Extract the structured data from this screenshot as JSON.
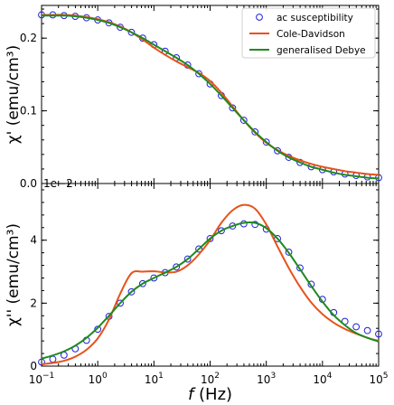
{
  "chart_data": [
    {
      "type": "line",
      "ylabel": "χ' (emu/cm³)",
      "xscale": "log",
      "xlim_log10": [
        -1,
        5
      ],
      "ylim": [
        0.0,
        0.245
      ],
      "yticks": [
        0.0,
        0.1,
        0.2
      ],
      "ytick_labels": [
        "0.0",
        "0.1",
        "0.2"
      ],
      "legend": {
        "placement": "top-right",
        "entries": [
          {
            "label": "ac susceptibility",
            "marker": "open-circle",
            "color": "#1f1fdc"
          },
          {
            "label": "Cole-Davidson",
            "marker": "line",
            "color": "#e8521a"
          },
          {
            "label": "generalised Debye",
            "marker": "line",
            "color": "#1f8a1f"
          }
        ]
      },
      "x_log10": [
        -1.0,
        -0.8,
        -0.6,
        -0.4,
        -0.2,
        0.0,
        0.2,
        0.4,
        0.6,
        0.8,
        1.0,
        1.2,
        1.4,
        1.6,
        1.8,
        2.0,
        2.2,
        2.4,
        2.6,
        2.8,
        3.0,
        3.2,
        3.4,
        3.6,
        3.8,
        4.0,
        4.2,
        4.4,
        4.6,
        4.8,
        5.0
      ],
      "series": [
        {
          "name": "ac susceptibility",
          "style": "markers",
          "color": "#1f1fdc",
          "values": [
            0.232,
            0.232,
            0.231,
            0.23,
            0.228,
            0.225,
            0.221,
            0.215,
            0.208,
            0.2,
            0.191,
            0.182,
            0.173,
            0.163,
            0.151,
            0.137,
            0.121,
            0.104,
            0.087,
            0.071,
            0.057,
            0.045,
            0.036,
            0.029,
            0.023,
            0.019,
            0.016,
            0.013,
            0.011,
            0.009,
            0.008
          ]
        },
        {
          "name": "Cole-Davidson",
          "style": "line",
          "color": "#e8521a",
          "values": [
            0.232,
            0.232,
            0.232,
            0.231,
            0.229,
            0.226,
            0.222,
            0.216,
            0.208,
            0.198,
            0.187,
            0.177,
            0.168,
            0.16,
            0.152,
            0.141,
            0.125,
            0.106,
            0.087,
            0.07,
            0.056,
            0.046,
            0.038,
            0.032,
            0.027,
            0.023,
            0.02,
            0.017,
            0.015,
            0.013,
            0.012
          ]
        },
        {
          "name": "generalised Debye",
          "style": "line",
          "color": "#1f8a1f",
          "values": [
            0.231,
            0.231,
            0.231,
            0.23,
            0.228,
            0.225,
            0.221,
            0.215,
            0.208,
            0.2,
            0.191,
            0.182,
            0.173,
            0.163,
            0.151,
            0.137,
            0.121,
            0.104,
            0.087,
            0.071,
            0.057,
            0.045,
            0.036,
            0.029,
            0.023,
            0.019,
            0.015,
            0.012,
            0.01,
            0.008,
            0.007
          ]
        }
      ]
    },
    {
      "type": "line",
      "ylabel": "χ'' (emu/cm³)",
      "xlabel": "f (Hz)",
      "xlabel_italic_part": "f",
      "xlabel_rest": " (Hz)",
      "xscale": "log",
      "xlim_log10": [
        -1,
        5
      ],
      "xticks_log10": [
        -1,
        0,
        1,
        2,
        3,
        4,
        5
      ],
      "xtick_exponents": [
        "−1",
        "0",
        "1",
        "2",
        "3",
        "4",
        "5"
      ],
      "xtick_base": "10",
      "ylim": [
        0.0,
        5.8
      ],
      "yticks": [
        0,
        2,
        4
      ],
      "ytick_labels": [
        "0",
        "2",
        "4"
      ],
      "offset_text": "1e−2",
      "x_log10": [
        -1.0,
        -0.8,
        -0.6,
        -0.4,
        -0.2,
        0.0,
        0.2,
        0.4,
        0.6,
        0.8,
        1.0,
        1.2,
        1.4,
        1.6,
        1.8,
        2.0,
        2.2,
        2.4,
        2.6,
        2.8,
        3.0,
        3.2,
        3.4,
        3.6,
        3.8,
        4.0,
        4.2,
        4.4,
        4.6,
        4.8,
        5.0
      ],
      "series": [
        {
          "name": "ac susceptibility",
          "style": "markers",
          "color": "#1f1fdc",
          "values": [
            0.13,
            0.22,
            0.35,
            0.55,
            0.82,
            1.17,
            1.58,
            2.0,
            2.36,
            2.62,
            2.8,
            2.97,
            3.15,
            3.4,
            3.72,
            4.05,
            4.3,
            4.45,
            4.52,
            4.5,
            4.35,
            4.05,
            3.62,
            3.12,
            2.6,
            2.12,
            1.7,
            1.42,
            1.25,
            1.13,
            1.02
          ]
        },
        {
          "name": "Cole-Davidson",
          "style": "line",
          "color": "#e8521a",
          "values": [
            0.06,
            0.1,
            0.17,
            0.3,
            0.52,
            0.88,
            1.48,
            2.3,
            2.95,
            3.0,
            3.01,
            2.98,
            3.0,
            3.2,
            3.55,
            4.0,
            4.55,
            4.95,
            5.12,
            5.0,
            4.5,
            3.8,
            3.12,
            2.52,
            2.02,
            1.65,
            1.38,
            1.18,
            1.03,
            0.9,
            0.8
          ]
        },
        {
          "name": "generalised Debye",
          "style": "line",
          "color": "#1f8a1f",
          "values": [
            0.24,
            0.34,
            0.47,
            0.65,
            0.9,
            1.22,
            1.6,
            2.0,
            2.36,
            2.62,
            2.8,
            2.97,
            3.15,
            3.4,
            3.72,
            4.05,
            4.3,
            4.45,
            4.55,
            4.55,
            4.38,
            4.05,
            3.6,
            3.08,
            2.55,
            2.05,
            1.62,
            1.3,
            1.05,
            0.9,
            0.78
          ]
        }
      ]
    }
  ]
}
